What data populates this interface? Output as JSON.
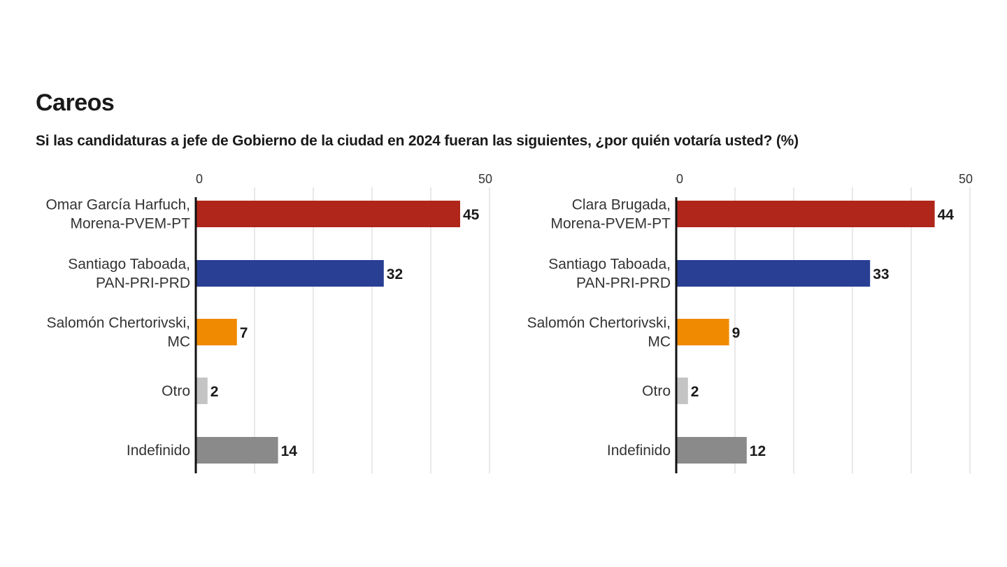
{
  "title": "Careos",
  "subtitle": "Si las candidaturas a jefe de Gobierno de la ciudad en 2024 fueran las siguientes, ¿por quién votaría usted? (%)",
  "colors": {
    "morena": "#b0261a",
    "panpriprd": "#283f94",
    "mc": "#f08a00",
    "otro": "#c4c4c4",
    "indefinido": "#8a8a8a",
    "grid": "#d9d9d9",
    "axis": "#111111"
  },
  "chart_data": [
    {
      "type": "bar",
      "orientation": "horizontal",
      "xlim": [
        0,
        50
      ],
      "ticks": [
        0,
        50
      ],
      "grid": true,
      "grid_step": 10,
      "categories": [
        [
          "Omar García Harfuch,",
          "Morena-PVEM-PT"
        ],
        [
          "Santiago Taboada,",
          "PAN-PRI-PRD"
        ],
        [
          "Salomón Chertorivski,",
          "MC"
        ],
        [
          "Otro"
        ],
        [
          "Indefinido"
        ]
      ],
      "values": [
        45,
        32,
        7,
        2,
        14
      ],
      "bar_colors": [
        "morena",
        "panpriprd",
        "mc",
        "otro",
        "indefinido"
      ]
    },
    {
      "type": "bar",
      "orientation": "horizontal",
      "xlim": [
        0,
        50
      ],
      "ticks": [
        0,
        50
      ],
      "grid": true,
      "grid_step": 10,
      "categories": [
        [
          "Clara Brugada,",
          "Morena-PVEM-PT"
        ],
        [
          "Santiago Taboada,",
          "PAN-PRI-PRD"
        ],
        [
          "Salomón Chertorivski,",
          "MC"
        ],
        [
          "Otro"
        ],
        [
          "Indefinido"
        ]
      ],
      "values": [
        44,
        33,
        9,
        2,
        12
      ],
      "bar_colors": [
        "morena",
        "panpriprd",
        "mc",
        "otro",
        "indefinido"
      ]
    }
  ]
}
